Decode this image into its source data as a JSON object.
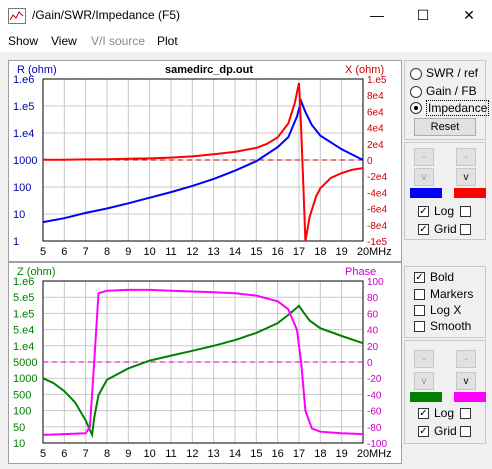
{
  "window": {
    "title": "/Gain/SWR/Impedance (F5)",
    "minimize": "—",
    "maximize": "☐",
    "close": "✕"
  },
  "menu": [
    "Show",
    "View",
    "V/I source",
    "Plot"
  ],
  "top_chart": {
    "title": "samedirc_dp.out",
    "left_label": "R (ohm)",
    "right_label": "X (ohm)",
    "left_ticks": [
      "1.e6",
      "1.e5",
      "1.e4",
      "1000",
      "100",
      "10",
      "1"
    ],
    "right_ticks": [
      "1.e5",
      "8e4",
      "6e4",
      "4e4",
      "2e4",
      "0",
      "-2e4",
      "-4e4",
      "-6e4",
      "-8e4",
      "-1e5"
    ],
    "x_ticks": [
      "5",
      "6",
      "7",
      "8",
      "9",
      "10",
      "11",
      "12",
      "13",
      "14",
      "15",
      "16",
      "17",
      "18",
      "19",
      "20"
    ],
    "x_unit": "MHz"
  },
  "bottom_chart": {
    "left_label": "Z (ohm)",
    "right_label": "Phase",
    "left_ticks": [
      "1.e6",
      "5.e5",
      "1.e5",
      "5.e4",
      "1.e4",
      "5000",
      "1000",
      "500",
      "100",
      "50",
      "10"
    ],
    "right_ticks": [
      "100",
      "80",
      "60",
      "40",
      "20",
      "0",
      "-20",
      "-40",
      "-60",
      "-80",
      "-100"
    ],
    "x_ticks": [
      "5",
      "6",
      "7",
      "8",
      "9",
      "10",
      "11",
      "12",
      "13",
      "14",
      "15",
      "16",
      "17",
      "18",
      "19",
      "20"
    ],
    "x_unit": "MHz"
  },
  "chart_data": [
    {
      "type": "line",
      "title": "samedirc_dp.out",
      "xlabel": "MHz",
      "ylabel": "R (ohm)",
      "y2label": "X (ohm)",
      "xlim": [
        5,
        20
      ],
      "ylim_log": [
        1,
        1000000
      ],
      "y2lim": [
        -100000,
        100000
      ],
      "series": [
        {
          "name": "R (ohm)",
          "color": "#0000ff",
          "axis": "left-log",
          "x": [
            5,
            6,
            7,
            8,
            9,
            10,
            11,
            12,
            13,
            14,
            15,
            16,
            16.5,
            16.9,
            17.1,
            17.3,
            17.6,
            18,
            19,
            20
          ],
          "y": [
            5,
            7,
            11,
            16,
            25,
            40,
            65,
            110,
            200,
            400,
            900,
            3000,
            7000,
            40000,
            150000,
            60000,
            20000,
            8000,
            2500,
            1000
          ]
        },
        {
          "name": "X (ohm)",
          "color": "#ff0000",
          "axis": "right",
          "x": [
            5,
            6,
            7,
            8,
            9,
            10,
            11,
            12,
            13,
            14,
            15,
            15.5,
            16,
            16.5,
            16.8,
            17,
            17.1,
            17.2,
            17.3,
            17.5,
            17.8,
            18,
            18.5,
            19,
            19.5,
            20
          ],
          "y": [
            200,
            400,
            700,
            1000,
            1500,
            2000,
            3000,
            4500,
            7000,
            10000,
            15000,
            20000,
            28000,
            45000,
            70000,
            95000,
            40000,
            -30000,
            -100000,
            -70000,
            -45000,
            -35000,
            -22000,
            -16000,
            -12000,
            -10000
          ]
        }
      ]
    },
    {
      "type": "line",
      "xlabel": "MHz",
      "ylabel": "Z (ohm)",
      "y2label": "Phase",
      "xlim": [
        5,
        20
      ],
      "ylim_log": [
        10,
        1000000
      ],
      "y2lim": [
        -100,
        100
      ],
      "series": [
        {
          "name": "Z (ohm)",
          "color": "#008000",
          "axis": "left-log",
          "x": [
            5,
            5.5,
            6,
            6.5,
            7,
            7.2,
            7.3,
            7.4,
            7.6,
            8,
            9,
            10,
            11,
            12,
            13,
            14,
            15,
            16,
            16.5,
            17,
            17.2,
            17.5,
            18,
            19,
            20
          ],
          "y": [
            1000,
            700,
            400,
            180,
            50,
            25,
            18,
            60,
            300,
            900,
            2000,
            3500,
            5000,
            7000,
            10000,
            15000,
            25000,
            50000,
            90000,
            170000,
            110000,
            60000,
            35000,
            20000,
            12000
          ]
        },
        {
          "name": "Phase",
          "color": "#ff00ff",
          "axis": "right",
          "x": [
            5,
            6,
            7,
            7.2,
            7.4,
            7.6,
            8,
            9,
            10,
            11,
            12,
            13,
            14,
            15,
            16,
            16.5,
            16.9,
            17.1,
            17.3,
            17.6,
            18,
            19,
            20
          ],
          "y": [
            -90,
            -89,
            -88,
            -80,
            0,
            85,
            88,
            89,
            89,
            88,
            87,
            86,
            85,
            82,
            75,
            65,
            40,
            0,
            -60,
            -82,
            -86,
            -88,
            -89
          ]
        }
      ]
    }
  ],
  "side_panel": {
    "radio": [
      "SWR / ref",
      "Gain / FB",
      "Impedance"
    ],
    "reset": "Reset",
    "top_group": {
      "minus": "-",
      "up": "^",
      "down": "v",
      "left_color": "#0000ff",
      "right_color": "#ff0000",
      "log": "Log",
      "grid": "Grid"
    },
    "options": [
      "Bold",
      "Markers",
      "Log X",
      "Smooth"
    ],
    "bottom_group": {
      "minus": "-",
      "up": "^",
      "down": "v",
      "left_color": "#008000",
      "right_color": "#ff00ff",
      "log": "Log",
      "grid": "Grid"
    }
  }
}
